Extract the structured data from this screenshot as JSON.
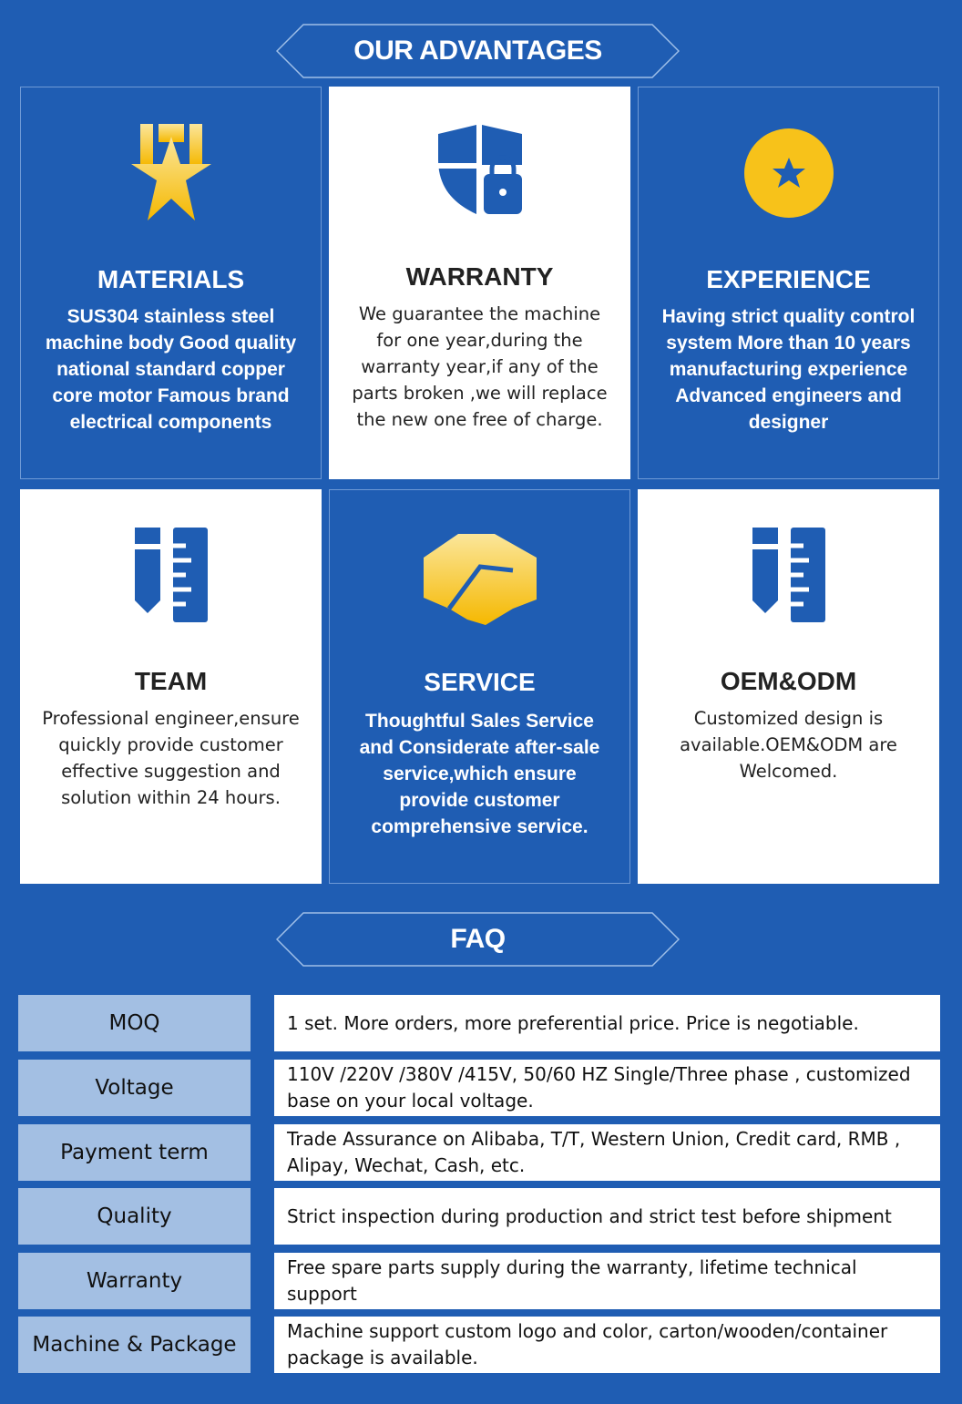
{
  "advantages_title": "OUR ADVANTAGES",
  "cards": [
    {
      "title": "MATERIALS",
      "text": "SUS304 stainless steel machine body Good quality national standard copper core motor Famous brand electrical components",
      "icon": "medal-star-icon",
      "style": "blue"
    },
    {
      "title": "WARRANTY",
      "text": "We guarantee the machine for one year,during the warranty year,if any of the parts broken ,we will replace the new one free of charge.",
      "icon": "shield-lock-icon",
      "style": "white"
    },
    {
      "title": "EXPERIENCE",
      "text": "Having strict quality control system More than 10 years manufacturing experience Advanced engineers and designer",
      "icon": "star-badge-icon",
      "style": "blue"
    },
    {
      "title": "TEAM",
      "text": "Professional engineer,ensure quickly provide customer effective suggestion and solution within 24 hours.",
      "icon": "pencil-ruler-icon",
      "style": "white"
    },
    {
      "title": "SERVICE",
      "text": "Thoughtful Sales Service and Considerate after-sale service,which ensure provide customer comprehensive service.",
      "icon": "handshake-icon",
      "style": "blue"
    },
    {
      "title": "OEM&ODM",
      "text": "Customized design is available.OEM&ODM are Welcomed.",
      "icon": "pencil-ruler-icon",
      "style": "white"
    }
  ],
  "faq_title": "FAQ",
  "faq": [
    {
      "label": "MOQ",
      "value": "1 set.  More orders, more preferential price.  Price is negotiable."
    },
    {
      "label": "Voltage",
      "value": "110V /220V /380V /415V, 50/60 HZ Single/Three phase , customized base on your local voltage."
    },
    {
      "label": "Payment term",
      "value": "Trade Assurance on Alibaba, T/T, Western Union, Credit card, RMB , Alipay, Wechat, Cash, etc."
    },
    {
      "label": "Quality",
      "value": "Strict inspection during production and strict test before shipment"
    },
    {
      "label": "Warranty",
      "value": "Free spare parts supply during the  warranty, lifetime technical support"
    },
    {
      "label": "Machine & Package",
      "value": "Machine support custom logo and color, carton/wooden/container package is available."
    }
  ],
  "colors": {
    "background": "#1f5db3",
    "accent_gold": "#f7c21a",
    "label_cell": "#a3bfe3"
  }
}
